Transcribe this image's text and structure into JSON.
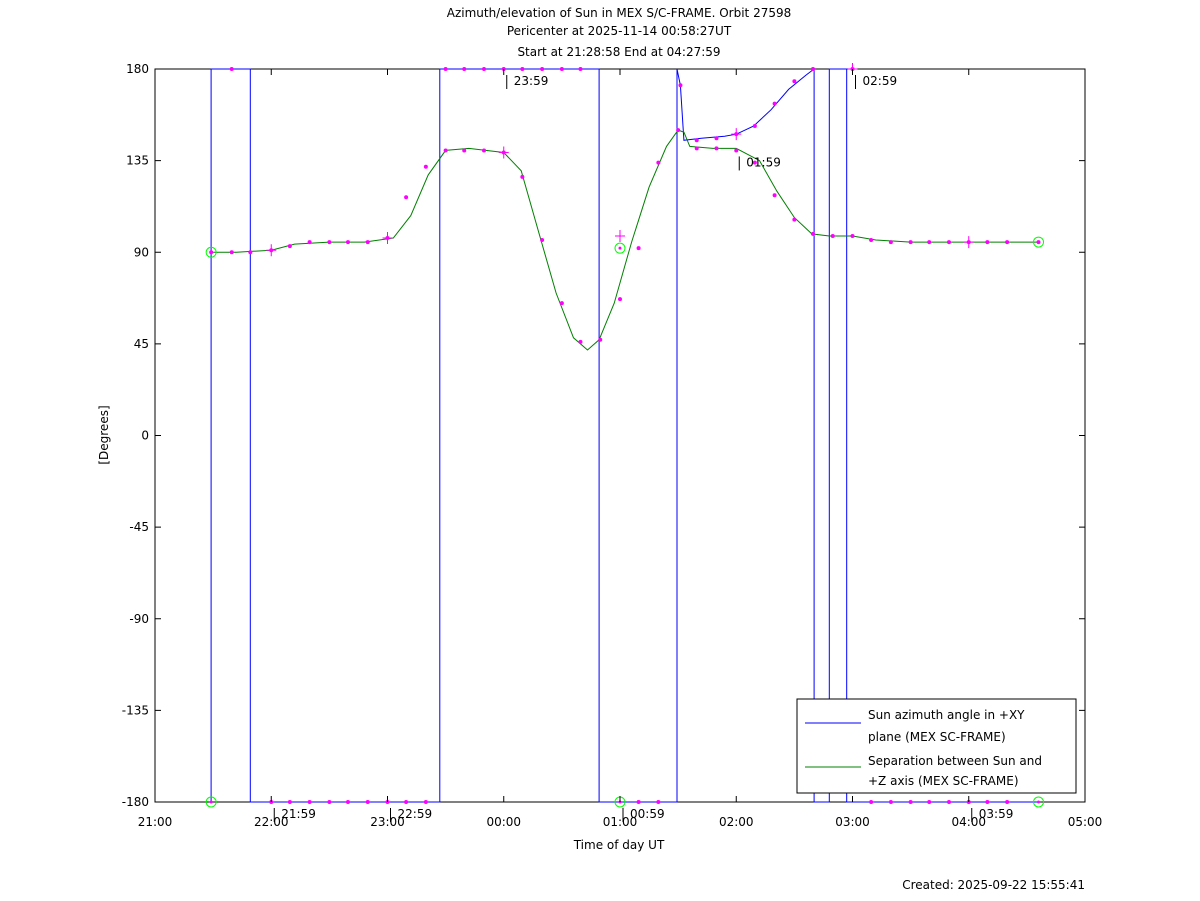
{
  "chart_data": {
    "type": "line",
    "title": "Azimuth/elevation of Sun in MEX S/C-FRAME.  Orbit 27598",
    "subtitle_lines": [
      "Pericenter at 2025-11-14 00:58:27UT",
      "Start at 21:28:58 End at 04:27:59"
    ],
    "xlabel": "Time of day UT",
    "ylabel": "[Degrees]",
    "x_unit": "hours since 21:00",
    "xlim": [
      0,
      8
    ],
    "ylim": [
      -180,
      180
    ],
    "x_ticks": [
      {
        "value": 0,
        "label": "21:00"
      },
      {
        "value": 1,
        "label": "22:00"
      },
      {
        "value": 2,
        "label": "23:00"
      },
      {
        "value": 3,
        "label": "00:00"
      },
      {
        "value": 4,
        "label": "01:00"
      },
      {
        "value": 5,
        "label": "02:00"
      },
      {
        "value": 6,
        "label": "03:00"
      },
      {
        "value": 7,
        "label": "04:00"
      },
      {
        "value": 8,
        "label": "05:00"
      }
    ],
    "y_ticks": [
      180,
      135,
      90,
      45,
      0,
      -45,
      -90,
      -135,
      -180
    ],
    "grid": false,
    "legend_position": "bottom-right",
    "series": [
      {
        "name": "Sun azimuth angle in +XY plane (MEX SC-FRAME)",
        "legend_lines": [
          "Sun azimuth angle in +XY",
          "plane (MEX SC-FRAME)"
        ],
        "color": "#0000ff",
        "points": [
          [
            0.483,
            -180
          ],
          [
            0.483,
            180
          ],
          [
            0.82,
            180
          ],
          [
            0.82,
            -180
          ],
          [
            2.45,
            -180
          ],
          [
            2.45,
            180
          ],
          [
            3.82,
            180
          ],
          [
            3.82,
            -180
          ],
          [
            4.49,
            -180
          ],
          [
            4.49,
            180
          ],
          [
            4.52,
            172
          ],
          [
            4.55,
            145
          ],
          [
            4.7,
            146
          ],
          [
            4.9,
            147
          ],
          [
            5.0,
            148
          ],
          [
            5.15,
            152
          ],
          [
            5.3,
            160
          ],
          [
            5.45,
            170
          ],
          [
            5.6,
            177
          ],
          [
            5.67,
            180
          ],
          [
            5.67,
            -180
          ],
          [
            5.8,
            -180
          ],
          [
            5.8,
            180
          ],
          [
            5.95,
            180
          ],
          [
            5.95,
            -180
          ],
          [
            6.1,
            -180
          ],
          [
            7.6,
            -180
          ]
        ]
      },
      {
        "name": "Separation between Sun and +Z axis (MEX SC-FRAME)",
        "legend_lines": [
          "Separation between Sun and",
          "+Z axis (MEX SC-FRAME)"
        ],
        "color": "#008000",
        "points": [
          [
            0.483,
            90
          ],
          [
            0.7,
            90
          ],
          [
            1.0,
            91
          ],
          [
            1.2,
            94
          ],
          [
            1.5,
            95
          ],
          [
            1.8,
            95
          ],
          [
            2.05,
            97
          ],
          [
            2.2,
            108
          ],
          [
            2.35,
            128
          ],
          [
            2.5,
            140
          ],
          [
            2.7,
            141
          ],
          [
            3.0,
            139
          ],
          [
            3.15,
            130
          ],
          [
            3.3,
            100
          ],
          [
            3.45,
            70
          ],
          [
            3.6,
            48
          ],
          [
            3.72,
            42
          ],
          [
            3.82,
            47
          ],
          [
            3.95,
            65
          ],
          [
            4.1,
            95
          ],
          [
            4.25,
            122
          ],
          [
            4.4,
            142
          ],
          [
            4.5,
            150
          ],
          [
            4.55,
            149
          ],
          [
            4.6,
            142
          ],
          [
            4.8,
            141
          ],
          [
            5.0,
            141
          ],
          [
            5.2,
            135
          ],
          [
            5.35,
            120
          ],
          [
            5.5,
            107
          ],
          [
            5.65,
            99
          ],
          [
            5.8,
            98
          ],
          [
            6.0,
            98
          ],
          [
            6.2,
            96
          ],
          [
            6.5,
            95
          ],
          [
            7.0,
            95
          ],
          [
            7.6,
            95
          ]
        ]
      }
    ],
    "sample_markers": [
      [
        0.483,
        90
      ],
      [
        0.66,
        90
      ],
      [
        0.82,
        90
      ],
      [
        1.0,
        91
      ],
      [
        1.16,
        93
      ],
      [
        1.33,
        95
      ],
      [
        1.5,
        95
      ],
      [
        1.66,
        95
      ],
      [
        1.83,
        95
      ],
      [
        2.0,
        97
      ],
      [
        2.16,
        117
      ],
      [
        2.33,
        132
      ],
      [
        2.5,
        140
      ],
      [
        2.66,
        140
      ],
      [
        2.83,
        140
      ],
      [
        3.0,
        139
      ],
      [
        3.16,
        127
      ],
      [
        3.33,
        96
      ],
      [
        3.5,
        65
      ],
      [
        3.66,
        46
      ],
      [
        3.83,
        47
      ],
      [
        4.0,
        67
      ],
      [
        4.16,
        92
      ],
      [
        4.33,
        134
      ],
      [
        4.5,
        150
      ],
      [
        4.66,
        141
      ],
      [
        4.83,
        141
      ],
      [
        5.0,
        140
      ],
      [
        5.16,
        134
      ],
      [
        5.33,
        118
      ],
      [
        5.5,
        106
      ],
      [
        5.66,
        99
      ],
      [
        5.83,
        98
      ],
      [
        6.0,
        98
      ],
      [
        6.16,
        96
      ],
      [
        6.33,
        95
      ],
      [
        6.5,
        95
      ],
      [
        6.66,
        95
      ],
      [
        6.83,
        95
      ],
      [
        7.0,
        95
      ],
      [
        7.16,
        95
      ],
      [
        7.33,
        95
      ],
      [
        7.6,
        95
      ],
      [
        0.66,
        180
      ],
      [
        2.5,
        180
      ],
      [
        2.66,
        180
      ],
      [
        2.83,
        180
      ],
      [
        3.0,
        180
      ],
      [
        3.16,
        180
      ],
      [
        3.33,
        180
      ],
      [
        3.5,
        180
      ],
      [
        3.66,
        180
      ],
      [
        4.52,
        172
      ],
      [
        4.66,
        145
      ],
      [
        4.83,
        146
      ],
      [
        5.0,
        148
      ],
      [
        5.16,
        152
      ],
      [
        5.33,
        163
      ],
      [
        5.5,
        174
      ],
      [
        5.66,
        180
      ],
      [
        6.0,
        180
      ],
      [
        1.0,
        -180
      ],
      [
        1.16,
        -180
      ],
      [
        1.33,
        -180
      ],
      [
        1.5,
        -180
      ],
      [
        1.66,
        -180
      ],
      [
        1.83,
        -180
      ],
      [
        2.0,
        -180
      ],
      [
        2.16,
        -180
      ],
      [
        2.33,
        -180
      ],
      [
        4.16,
        -180
      ],
      [
        4.33,
        -180
      ],
      [
        6.16,
        -180
      ],
      [
        6.33,
        -180
      ],
      [
        6.5,
        -180
      ],
      [
        6.66,
        -180
      ],
      [
        6.83,
        -180
      ],
      [
        7.0,
        -180
      ],
      [
        7.16,
        -180
      ],
      [
        7.33,
        -180
      ]
    ],
    "hour_markers": [
      [
        1.0,
        91
      ],
      [
        2.0,
        97
      ],
      [
        3.0,
        139
      ],
      [
        4.0,
        98
      ],
      [
        5.0,
        148
      ],
      [
        6.0,
        180
      ],
      [
        7.0,
        95
      ]
    ],
    "endpoint_circles": [
      [
        0.483,
        90
      ],
      [
        0.483,
        -180
      ],
      [
        4.0,
        92
      ],
      [
        4.0,
        -180
      ],
      [
        7.6,
        95
      ],
      [
        7.6,
        -180
      ]
    ],
    "annotations": [
      {
        "x": 3.0,
        "y": 180,
        "label": "23:59"
      },
      {
        "x": 5.0,
        "y": 140,
        "label": "01:59"
      },
      {
        "x": 6.0,
        "y": 180,
        "label": "02:59"
      },
      {
        "x": 1.0,
        "y": -180,
        "label": "21:59"
      },
      {
        "x": 2.0,
        "y": -180,
        "label": "22:59"
      },
      {
        "x": 4.0,
        "y": -180,
        "label": "00:59"
      },
      {
        "x": 7.0,
        "y": -180,
        "label": "03:59"
      }
    ],
    "marker_color": "#ff00ff",
    "circle_color": "#00ff00"
  },
  "footer": {
    "created": "Created: 2025-09-22 15:55:41"
  }
}
